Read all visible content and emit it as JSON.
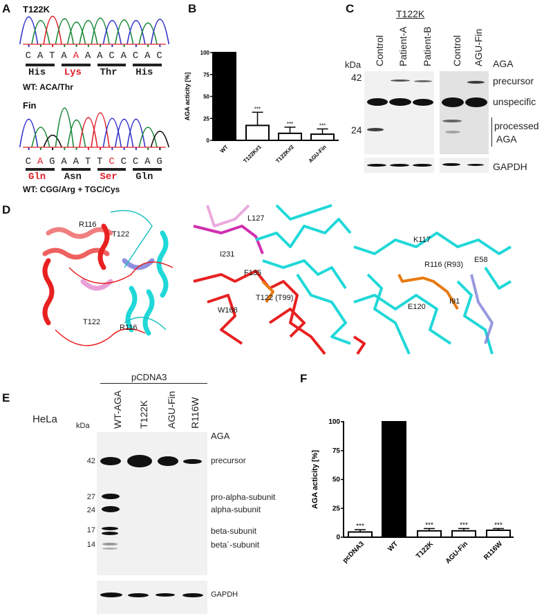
{
  "panel_labels": {
    "a": "A",
    "b": "B",
    "c": "C",
    "d": "D",
    "e": "E",
    "f": "F"
  },
  "panel_a": {
    "t122k": {
      "title": "T122K",
      "bases": [
        "C",
        "A",
        "T",
        "A",
        "A",
        "A",
        "A",
        "C",
        "A",
        "C",
        "A",
        "C"
      ],
      "highlight_index": 4,
      "codons": [
        {
          "aa": "His",
          "mutant": false
        },
        {
          "aa": "Lys",
          "mutant": true
        },
        {
          "aa": "Thr",
          "mutant": false
        },
        {
          "aa": "His",
          "mutant": false
        }
      ],
      "wt_note": "WT: ACA/Thr"
    },
    "fin": {
      "title": "Fin",
      "bases": [
        "C",
        "A",
        "G",
        "A",
        "A",
        "T",
        "T",
        "C",
        "C",
        "C",
        "A",
        "G"
      ],
      "highlight_indices": [
        1,
        7
      ],
      "codons": [
        {
          "aa": "Gln",
          "mutant": true
        },
        {
          "aa": "Asn",
          "mutant": false
        },
        {
          "aa": "Ser",
          "mutant": true
        },
        {
          "aa": "Gln",
          "mutant": false
        }
      ],
      "wt_note": "WT: CGG/Arg + TGC/Cys"
    },
    "base_colors": {
      "A": "#1a8a3a",
      "C": "#3333cc",
      "G": "#111111",
      "T": "#e0202a"
    },
    "mutant_color": "#e0202a"
  },
  "chart_data": [
    {
      "type": "bar",
      "panel": "B",
      "categories": [
        "WT",
        "T122K#1",
        "T122K#2",
        "AGU-Fin"
      ],
      "values": [
        100,
        17,
        8,
        7
      ],
      "errors": [
        0,
        15,
        7,
        6
      ],
      "significance": [
        "",
        "***",
        "***",
        "***"
      ],
      "fill": [
        "#000000",
        "#ffffff",
        "#ffffff",
        "#ffffff"
      ],
      "ylabel": "AGA acticity [%]",
      "xlabel": "",
      "ylim": [
        0,
        100
      ],
      "yticks": [
        "0",
        "25",
        "50",
        "75",
        "100"
      ],
      "grid": false
    },
    {
      "type": "bar",
      "panel": "F",
      "categories": [
        "pcDNA3",
        "WT",
        "T122K",
        "AGU-Fin",
        "R116W"
      ],
      "values": [
        4.5,
        100,
        5.5,
        5.5,
        6
      ],
      "errors": [
        2,
        0,
        2,
        2,
        1.5
      ],
      "significance": [
        "***",
        "",
        "***",
        "***",
        "***"
      ],
      "fill": [
        "#ffffff",
        "#000000",
        "#ffffff",
        "#ffffff",
        "#ffffff"
      ],
      "ylabel": "AGA acticity [%]",
      "xlabel": "",
      "ylim": [
        0,
        100
      ],
      "yticks": [
        "0",
        "25",
        "50",
        "75",
        "100"
      ],
      "grid": false
    }
  ],
  "panel_c": {
    "group_label": "T122K",
    "lanes": [
      "Control",
      "Patient-A",
      "Patient-B",
      "Control",
      "AGU-Fin"
    ],
    "kda_label": "kDa",
    "markers": [
      "42",
      "24"
    ],
    "right_labels": {
      "aga": "AGA",
      "precursor": "precursor",
      "unspecific": "unspecific",
      "processed": "processed",
      "processed_aga": "AGA",
      "gapdh": "GAPDH"
    }
  },
  "panel_d": {
    "overview_labels": [
      "R116",
      "T122",
      "T122",
      "R116"
    ],
    "t122_labels": [
      "L127",
      "I231",
      "F135",
      "T122 (T99)",
      "W168"
    ],
    "r116_labels": [
      "K117",
      "R116 (R93)",
      "E58",
      "E120",
      "I91"
    ],
    "colors": {
      "chain_a": "#e82020",
      "chain_b": "#20d8d8",
      "pink": "#e060c0",
      "orange": "#e87a10",
      "blue": "#7070d0"
    }
  },
  "panel_e": {
    "cell_line": "HeLa",
    "vector": "pCDNA3",
    "lanes": [
      "WT-AGA",
      "T122K",
      "AGU-Fin",
      "R116W"
    ],
    "kda_label": "kDa",
    "markers": [
      "42",
      "27",
      "24",
      "17",
      "14"
    ],
    "right_labels": [
      "AGA",
      "precursor",
      "pro-alpha-subunit",
      "alpha-subunit",
      "beta-subunit",
      "beta´-subunit"
    ],
    "gapdh": "GAPDH"
  }
}
